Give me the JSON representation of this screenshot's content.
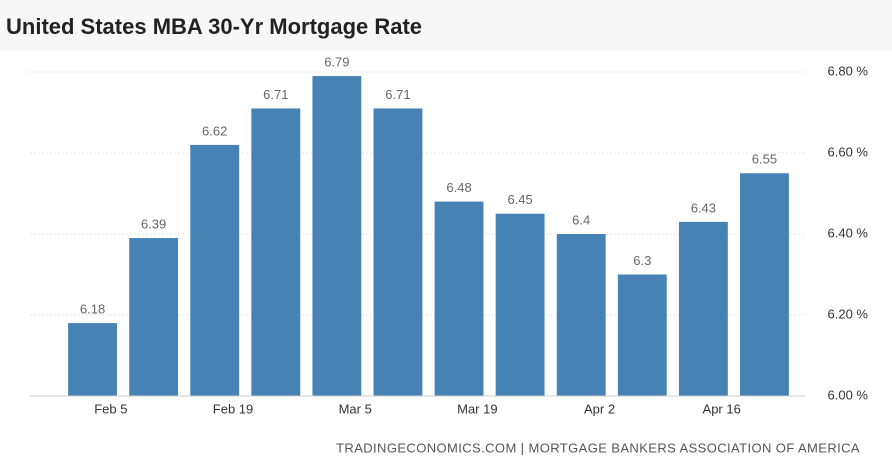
{
  "chart_data": {
    "type": "bar",
    "title": "United States MBA 30-Yr Mortgage Rate",
    "source": "TRADINGECONOMICS.COM | MORTGAGE BANKERS ASSOCIATION OF AMERICA",
    "categories": [
      "Feb 5",
      null,
      "Feb 19",
      null,
      "Mar 5",
      null,
      "Mar 19",
      null,
      "Apr 2",
      null,
      "Apr 16",
      null
    ],
    "values": [
      6.18,
      6.39,
      6.62,
      6.71,
      6.79,
      6.71,
      6.48,
      6.45,
      6.4,
      6.3,
      6.43,
      6.55
    ],
    "color": "#4682b4",
    "ylim": [
      6.0,
      6.8
    ],
    "yticks": [
      {
        "value": 6.0,
        "label": "6.00 %"
      },
      {
        "value": 6.2,
        "label": "6.20 %"
      },
      {
        "value": 6.4,
        "label": "6.40 %"
      },
      {
        "value": 6.6,
        "label": "6.60 %"
      },
      {
        "value": 6.8,
        "label": "6.80 %"
      }
    ],
    "grid": true
  }
}
